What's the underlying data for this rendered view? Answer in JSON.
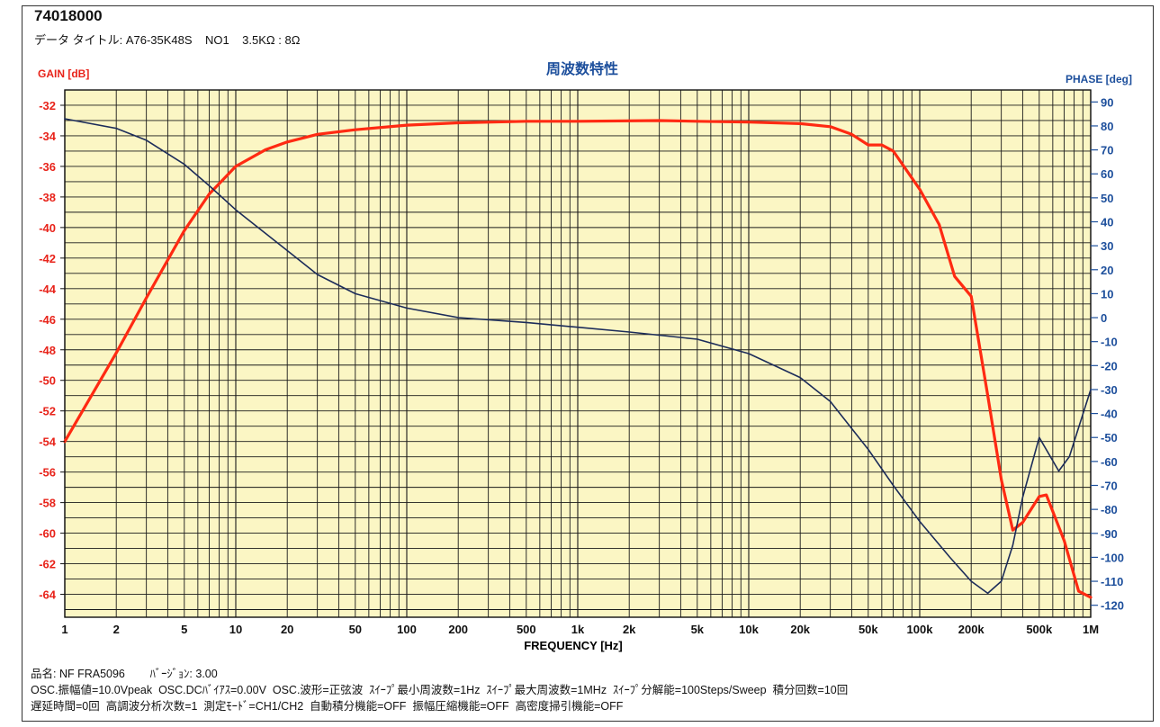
{
  "header": {
    "title": "74018000",
    "subtitle": "データ タイトル: A76-35K48S    NO1    3.5KΩ : 8Ω"
  },
  "footer": {
    "line1": "品名: NF FRA5096        ﾊﾞｰｼﾞｮﾝ: 3.00",
    "line2": "OSC.振幅値=10.0Vpeak  OSC.DCﾊﾞｲｱｽ=0.00V  OSC.波形=正弦波  ｽｲｰﾌﾟ最小周波数=1Hz  ｽｲｰﾌﾟ最大周波数=1MHz  ｽｲｰﾌﾟ分解能=100Steps/Sweep  積分回数=10回",
    "line3": "遅延時間=0回  高調波分析次数=1  測定ﾓｰﾄﾞ=CH1/CH2  自動積分機能=OFF  振幅圧縮機能=OFF  高密度掃引機能=OFF"
  },
  "colors": {
    "plot_bg": "#fbf6c4",
    "grid": "#1a1a1a",
    "gain": "#ff2a12",
    "phase": "#1c2c5a",
    "left_axis": "#e8231a",
    "right_axis": "#1d4f9c",
    "title": "#1d4f9c"
  },
  "chart_data": {
    "type": "line",
    "title": "周波数特性",
    "xlabel": "FREQUENCY [Hz]",
    "ylabel_left": "GAIN [dB]",
    "ylabel_right": "PHASE [deg]",
    "x_scale": "log",
    "xlim": [
      1,
      1000000
    ],
    "ylim_left": [
      -65.5,
      -31
    ],
    "ylim_right": [
      -125,
      95
    ],
    "grid": true,
    "x_ticks": [
      {
        "value": 1,
        "label": "1"
      },
      {
        "value": 2,
        "label": "2"
      },
      {
        "value": 5,
        "label": "5"
      },
      {
        "value": 10,
        "label": "10"
      },
      {
        "value": 20,
        "label": "20"
      },
      {
        "value": 50,
        "label": "50"
      },
      {
        "value": 100,
        "label": "100"
      },
      {
        "value": 200,
        "label": "200"
      },
      {
        "value": 500,
        "label": "500"
      },
      {
        "value": 1000,
        "label": "1k"
      },
      {
        "value": 2000,
        "label": "2k"
      },
      {
        "value": 5000,
        "label": "5k"
      },
      {
        "value": 10000,
        "label": "10k"
      },
      {
        "value": 20000,
        "label": "20k"
      },
      {
        "value": 50000,
        "label": "50k"
      },
      {
        "value": 100000,
        "label": "100k"
      },
      {
        "value": 200000,
        "label": "200k"
      },
      {
        "value": 500000,
        "label": "500k"
      },
      {
        "value": 1000000,
        "label": "1M"
      }
    ],
    "y_left_ticks": [
      -32,
      -34,
      -36,
      -38,
      -40,
      -42,
      -44,
      -46,
      -48,
      -50,
      -52,
      -54,
      -56,
      -58,
      -60,
      -62,
      -64
    ],
    "y_right_ticks": [
      90,
      80,
      70,
      60,
      50,
      40,
      30,
      20,
      10,
      0,
      -10,
      -20,
      -30,
      -40,
      -50,
      -60,
      -70,
      -80,
      -90,
      -100,
      -110,
      -120
    ],
    "series": [
      {
        "name": "GAIN",
        "axis": "left",
        "x": [
          1,
          2,
          3,
          5,
          7,
          10,
          15,
          20,
          30,
          50,
          100,
          200,
          500,
          1000,
          3000,
          5000,
          10000,
          20000,
          30000,
          40000,
          50000,
          60000,
          70000,
          100000,
          130000,
          160000,
          200000,
          250000,
          300000,
          350000,
          400000,
          500000,
          550000,
          700000,
          850000,
          1000000
        ],
        "y": [
          -54,
          -48.2,
          -44.6,
          -40.2,
          -37.8,
          -36.0,
          -34.9,
          -34.4,
          -33.9,
          -33.6,
          -33.3,
          -33.15,
          -33.05,
          -33.05,
          -33.0,
          -33.05,
          -33.1,
          -33.2,
          -33.4,
          -33.9,
          -34.6,
          -34.6,
          -35.0,
          -37.5,
          -39.8,
          -43.2,
          -44.5,
          -51.0,
          -56.5,
          -59.8,
          -59.3,
          -57.6,
          -57.5,
          -60.5,
          -63.8,
          -64.2
        ]
      },
      {
        "name": "PHASE",
        "axis": "right",
        "x": [
          1,
          2,
          3,
          5,
          7,
          10,
          15,
          20,
          30,
          50,
          100,
          200,
          500,
          1000,
          2000,
          5000,
          10000,
          20000,
          30000,
          50000,
          70000,
          100000,
          150000,
          200000,
          250000,
          300000,
          350000,
          400000,
          500000,
          650000,
          750000,
          1000000
        ],
        "y": [
          83,
          79,
          74,
          64,
          55,
          45,
          35,
          28,
          18,
          10,
          4,
          0,
          -2,
          -4,
          -6,
          -9,
          -15,
          -25,
          -35,
          -55,
          -70,
          -85,
          -100,
          -110,
          -115,
          -110,
          -95,
          -75,
          -50,
          -64,
          -58,
          -30
        ]
      }
    ]
  }
}
